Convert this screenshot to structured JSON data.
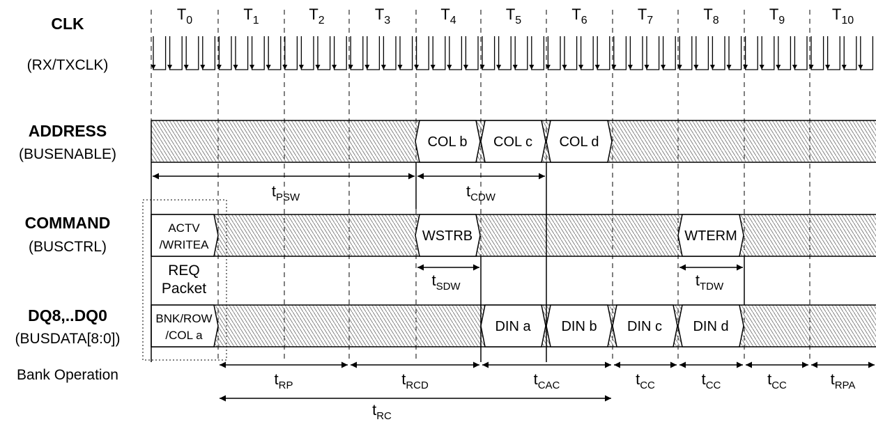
{
  "cycles": [
    {
      "base": "T",
      "sub": "0"
    },
    {
      "base": "T",
      "sub": "1"
    },
    {
      "base": "T",
      "sub": "2"
    },
    {
      "base": "T",
      "sub": "3"
    },
    {
      "base": "T",
      "sub": "4"
    },
    {
      "base": "T",
      "sub": "5"
    },
    {
      "base": "T",
      "sub": "6"
    },
    {
      "base": "T",
      "sub": "7"
    },
    {
      "base": "T",
      "sub": "8"
    },
    {
      "base": "T",
      "sub": "9"
    },
    {
      "base": "T",
      "sub": "10"
    }
  ],
  "signals": {
    "clk": {
      "name": "CLK",
      "alias": "(RX/TXCLK)"
    },
    "address": {
      "name": "ADDRESS",
      "alias": "(BUSENABLE)"
    },
    "command": {
      "name": "COMMAND",
      "alias": "(BUSCTRL)"
    },
    "dq": {
      "name": "DQ8,..DQ0",
      "alias": "(BUSDATA[8:0])"
    },
    "bank": {
      "name": "Bank Operation"
    }
  },
  "address_cells": [
    "COL b",
    "COL c",
    "COL d"
  ],
  "command_cells": {
    "actv": [
      "ACTV",
      "/WRITEA"
    ],
    "wstrb": "WSTRB",
    "wterm": "WTERM"
  },
  "req_packet": [
    "REQ",
    "Packet"
  ],
  "dq_cells": {
    "first": [
      "BNK/ROW",
      "/COL a"
    ],
    "din": [
      "DIN a",
      "DIN b",
      "DIN c",
      "DIN d"
    ]
  },
  "timings": {
    "tpsw": {
      "base": "t",
      "sub": "PSW"
    },
    "tcdw": {
      "base": "t",
      "sub": "CDW"
    },
    "tsdw": {
      "base": "t",
      "sub": "SDW"
    },
    "ttdw": {
      "base": "t",
      "sub": "TDW"
    },
    "bank": [
      {
        "base": "t",
        "sub": "RP"
      },
      {
        "base": "t",
        "sub": "RCD"
      },
      {
        "base": "t",
        "sub": "CAC"
      },
      {
        "base": "t",
        "sub": "CC"
      },
      {
        "base": "t",
        "sub": "CC"
      },
      {
        "base": "t",
        "sub": "CC"
      },
      {
        "base": "t",
        "sub": "RPA"
      }
    ],
    "trc": {
      "base": "t",
      "sub": "RC"
    }
  }
}
